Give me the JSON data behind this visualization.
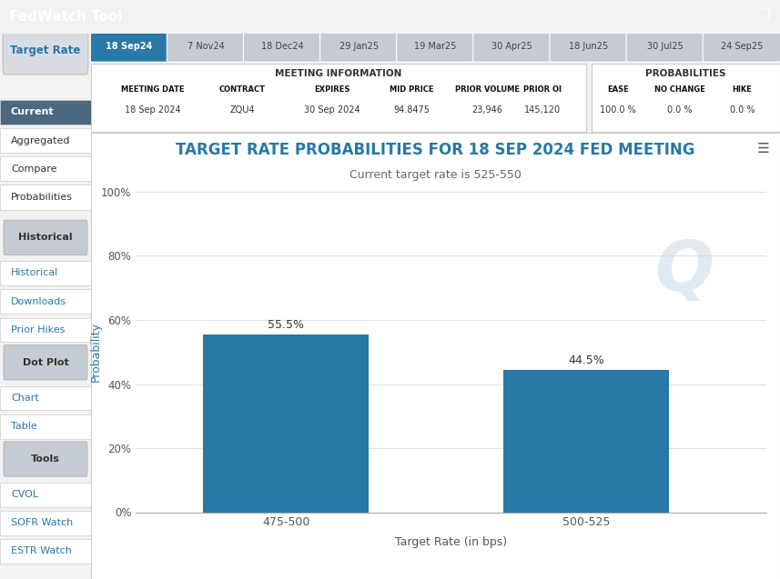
{
  "title": "TARGET RATE PROBABILITIES FOR 18 SEP 2024 FED MEETING",
  "subtitle": "Current target rate is 525-550",
  "xlabel": "Target Rate (in bps)",
  "ylabel": "Probability",
  "categories": [
    "475-500",
    "500-525"
  ],
  "values": [
    55.5,
    44.5
  ],
  "bar_color": "#2878a8",
  "ylim": [
    0,
    100
  ],
  "yticks": [
    0,
    20,
    40,
    60,
    80,
    100
  ],
  "ytick_labels": [
    "0%",
    "20%",
    "40%",
    "60%",
    "80%",
    "100%"
  ],
  "title_color": "#2878a8",
  "subtitle_color": "#666666",
  "header_bg": "#4a6880",
  "header_title": "FedWatch Tool",
  "nav_bg_active": "#2878a8",
  "nav_bg_inactive": "#c5cbd2",
  "nav_tabs": [
    "18 Sep24",
    "7 Nov24",
    "18 Dec24",
    "29 Jan25",
    "19 Mar25",
    "30 Apr25",
    "18 Jun25",
    "30 Jul25",
    "24 Sep25"
  ],
  "meeting_date": "18 Sep 2024",
  "contract": "ZQU4",
  "expires": "30 Sep 2024",
  "mid_price": "94.8475",
  "prior_volume": "23,946",
  "prior_oi": "145,120",
  "ease": "100.0 %",
  "no_change": "0.0 %",
  "hike": "0.0 %",
  "grid_color": "#e0e0e0",
  "bg_chart": "#ffffff",
  "bg_outer": "#f2f2f2",
  "sidebar_active_bg": "#4a6880",
  "sidebar_header_bg": "#c5cbd2",
  "sidebar_text_active": "#2878a8",
  "target_rate_btn_bg": "#d8dde3"
}
